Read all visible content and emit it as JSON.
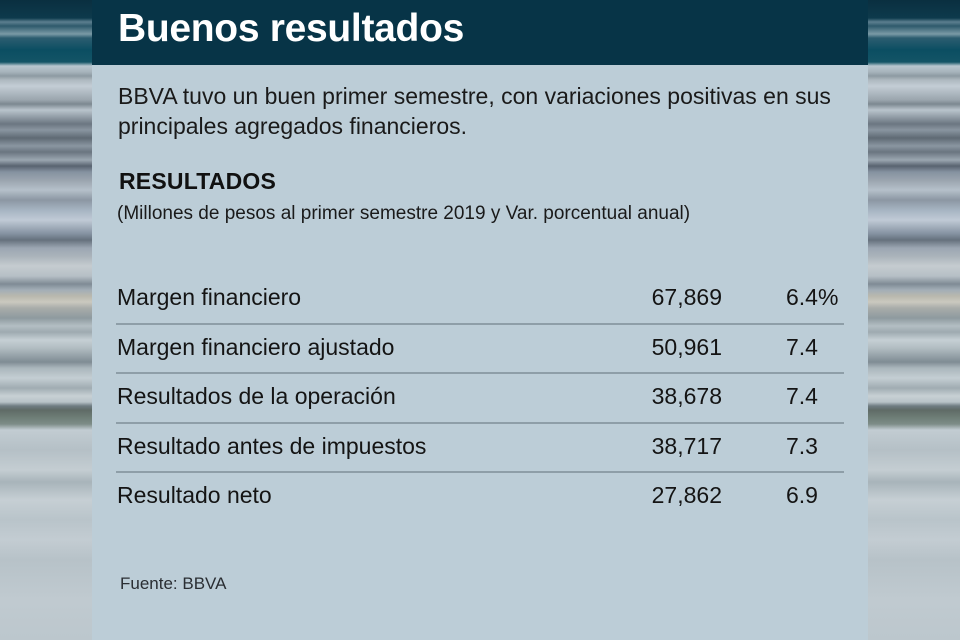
{
  "header": {
    "title": "Buenos resultados"
  },
  "intro": "BBVA tuvo un buen primer semestre, con variaciones positivas en sus principales agregados financieros.",
  "section": {
    "title": "RESULTADOS",
    "subtitle": "(Millones de pesos al primer semestre 2019 y Var. porcentual anual)"
  },
  "table": {
    "rows": [
      {
        "label": "Margen financiero",
        "value": "67,869",
        "variation": "6.4%"
      },
      {
        "label": "Margen financiero ajustado",
        "value": "50,961",
        "variation": "7.4"
      },
      {
        "label": "Resultados de la operación",
        "value": "38,678",
        "variation": "7.4"
      },
      {
        "label": "Resultado antes de impuestos",
        "value": "38,717",
        "variation": "7.3"
      },
      {
        "label": "Resultado neto",
        "value": "27,862",
        "variation": "6.9"
      }
    ]
  },
  "source": "Fuente: BBVA",
  "colors": {
    "header_bg": "#073447",
    "panel_bg": "#bccdd7",
    "divider": "#8e9ea8"
  }
}
